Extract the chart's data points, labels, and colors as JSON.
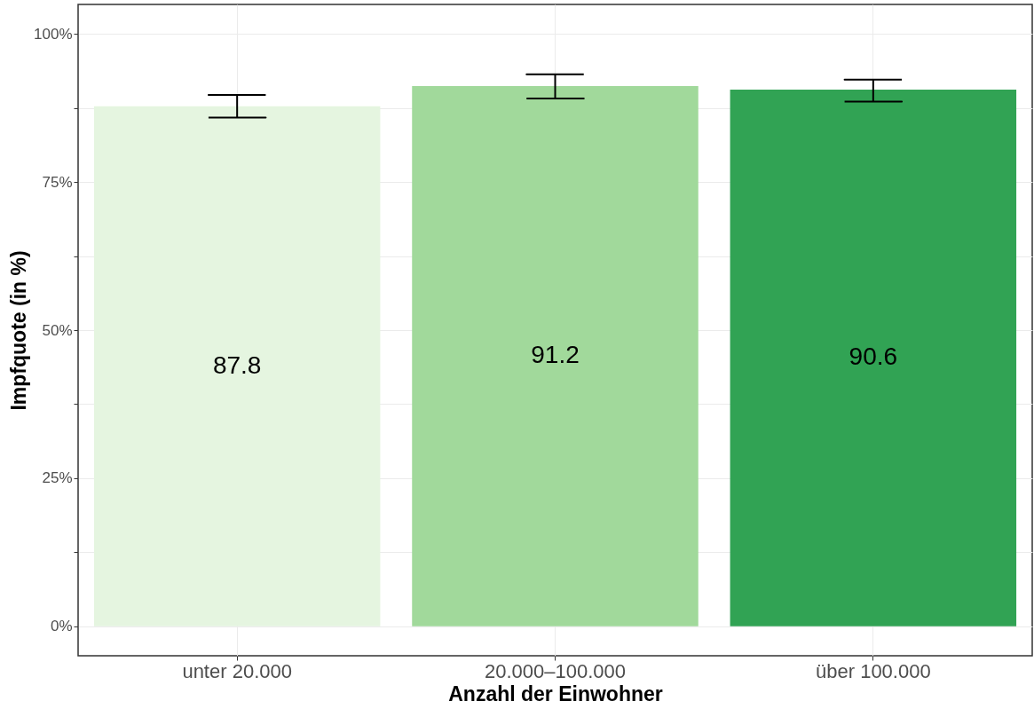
{
  "chart_data": {
    "type": "bar",
    "xlabel": "Anzahl der Einwohner",
    "ylabel": "Impfquote (in %)",
    "categories": [
      "unter 20.000",
      "20.000–100.000",
      "über 100.000"
    ],
    "values": [
      87.8,
      91.2,
      90.6
    ],
    "colors": [
      "#e5f5e0",
      "#a1d99b",
      "#31a354"
    ],
    "errors": [
      [
        85.9,
        89.7
      ],
      [
        89.1,
        93.2
      ],
      [
        88.6,
        92.3
      ]
    ],
    "data_labels": true,
    "ylim": [
      -5,
      105
    ],
    "yticks": [
      {
        "value": 0,
        "label": "0%"
      },
      {
        "value": 12.5,
        "label": null
      },
      {
        "value": 25,
        "label": "25%"
      },
      {
        "value": 37.5,
        "label": null
      },
      {
        "value": 50,
        "label": "50%"
      },
      {
        "value": 62.5,
        "label": null
      },
      {
        "value": 75,
        "label": "75%"
      },
      {
        "value": 87.5,
        "label": null
      },
      {
        "value": 100,
        "label": "100%"
      }
    ],
    "grid": true
  }
}
